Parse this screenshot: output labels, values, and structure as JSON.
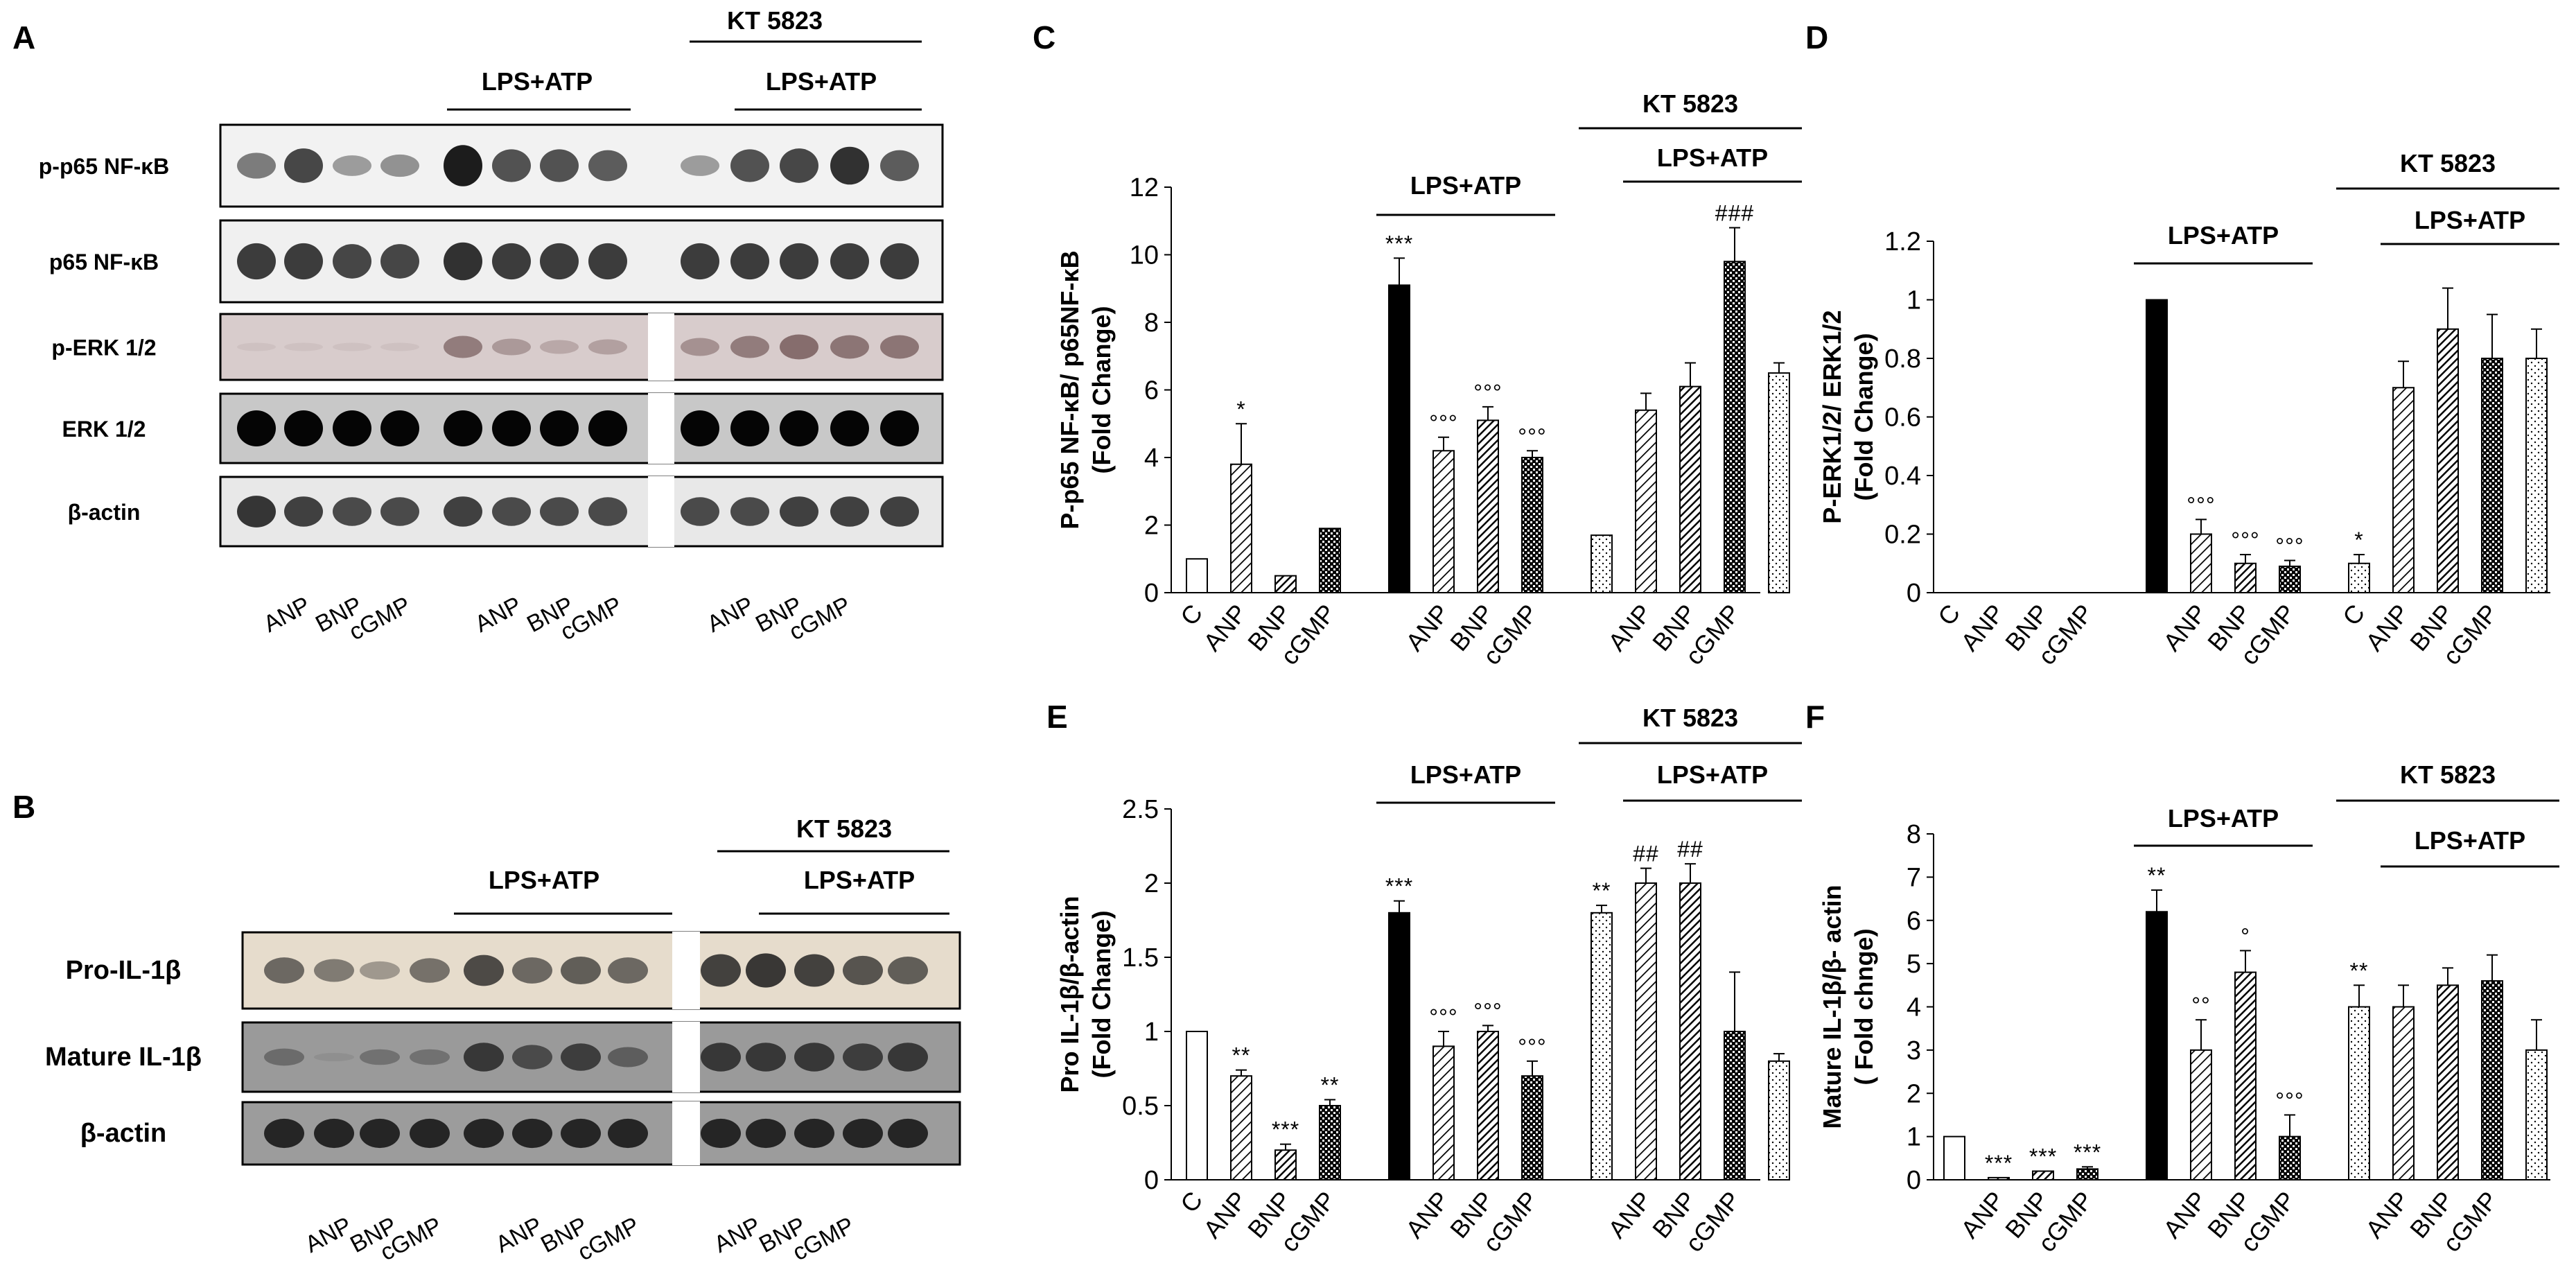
{
  "panel_letters": [
    "A",
    "B",
    "C",
    "D",
    "E",
    "F"
  ],
  "blot_A": {
    "treatment_labels": {
      "kt": "KT 5823",
      "lps_mid": "LPS+ATP",
      "lps_right": "LPS+ATP"
    },
    "rows": [
      {
        "label": "p-p65 NF-κB",
        "bg": "#f2f2f2",
        "color": "#1c1c1c",
        "intensity": [
          0.55,
          0.8,
          0.4,
          0.45,
          1.0,
          0.75,
          0.75,
          0.7,
          0.4,
          0.75,
          0.8,
          0.9,
          0.7
        ]
      },
      {
        "label": "p65 NF-κB",
        "bg": "#f0f0f0",
        "color": "#1c1c1c",
        "intensity": [
          0.85,
          0.85,
          0.8,
          0.8,
          0.9,
          0.85,
          0.85,
          0.85,
          0.85,
          0.85,
          0.85,
          0.85,
          0.85
        ]
      },
      {
        "label": "p-ERK 1/2",
        "bg": "#d8cccc",
        "color": "#5a3a3a",
        "intensity": [
          0.05,
          0.05,
          0.05,
          0.05,
          0.55,
          0.35,
          0.25,
          0.3,
          0.4,
          0.55,
          0.65,
          0.6,
          0.6
        ]
      },
      {
        "label": "ERK 1/2",
        "bg": "#c8c8c8",
        "color": "#050505",
        "intensity": [
          1,
          1,
          1,
          1,
          1,
          1,
          1,
          1,
          1,
          1,
          1,
          1,
          1
        ]
      },
      {
        "label": "β-actin",
        "bg": "#e8e8e8",
        "color": "#151515",
        "intensity": [
          0.85,
          0.8,
          0.75,
          0.75,
          0.8,
          0.75,
          0.75,
          0.75,
          0.75,
          0.75,
          0.8,
          0.8,
          0.8
        ]
      }
    ],
    "lane_labels": [
      "ANP",
      "BNP",
      "cGMP",
      "ANP",
      "BNP",
      "cGMP",
      "ANP",
      "BNP",
      "cGMP"
    ]
  },
  "blot_B": {
    "treatment_labels": {
      "kt": "KT 5823",
      "lps_mid": "LPS+ATP",
      "lps_right": "LPS+ATP"
    },
    "rows": [
      {
        "label": "Pro-IL-1β",
        "bg": "#e6dccc",
        "color": "#1a1a1a",
        "intensity": [
          0.6,
          0.5,
          0.35,
          0.55,
          0.75,
          0.6,
          0.65,
          0.6,
          0.8,
          0.85,
          0.8,
          0.7,
          0.65
        ]
      },
      {
        "label": "Mature IL-1β",
        "bg": "#9a9a9a",
        "color": "#151515",
        "intensity": [
          0.35,
          0.05,
          0.3,
          0.3,
          0.75,
          0.6,
          0.7,
          0.45,
          0.75,
          0.75,
          0.75,
          0.7,
          0.75
        ]
      },
      {
        "label": "β-actin",
        "bg": "#9c9c9c",
        "color": "#101010",
        "intensity": [
          0.85,
          0.85,
          0.85,
          0.85,
          0.85,
          0.85,
          0.85,
          0.85,
          0.85,
          0.85,
          0.85,
          0.85,
          0.85
        ]
      }
    ],
    "lane_labels": [
      "ANP",
      "BNP",
      "cGMP",
      "ANP",
      "BNP",
      "cGMP",
      "ANP",
      "BNP",
      "cGMP"
    ]
  },
  "chart_data": [
    {
      "panel": "C",
      "type": "bar",
      "ylabel": "P-p65 NF-κB/ p65NF-κB (Fold Change)",
      "ylim": [
        0,
        12
      ],
      "yticks": [
        "0",
        "2",
        "4",
        "6",
        "8",
        "10",
        "12"
      ],
      "categories": [
        "C",
        "ANP",
        "BNP",
        "cGMP",
        "C",
        "ANP",
        "BNP",
        "cGMP",
        "C",
        "ANP",
        "BNP",
        "cGMP",
        "C"
      ],
      "category_labels_shown": [
        "C",
        "ANP",
        "BNP",
        "cGMP",
        "",
        "ANP",
        "BNP",
        "cGMP",
        "",
        "ANP",
        "BNP",
        "cGMP",
        ""
      ],
      "values": [
        1.0,
        3.8,
        0.5,
        1.9,
        9.1,
        4.2,
        5.1,
        4.0,
        1.7,
        5.4,
        6.1,
        9.8,
        6.5
      ],
      "errors": [
        0,
        1.2,
        0,
        0,
        0.8,
        0.4,
        0.4,
        0.2,
        0,
        0.5,
        0.7,
        1.0,
        0.3
      ],
      "annotations": [
        "",
        "*",
        "",
        "",
        "***",
        "°°°",
        "°°°",
        "°°°",
        "",
        "",
        "",
        "###",
        ""
      ],
      "brackets": [
        {
          "label": "LPS+ATP",
          "from": 4,
          "to": 7
        },
        {
          "label": "KT 5823",
          "from": 8,
          "to": 12
        },
        {
          "label": "LPS+ATP",
          "from": 9,
          "to": 12
        }
      ]
    },
    {
      "panel": "D",
      "type": "bar",
      "ylabel": "P-ERK1/2/ ERK1/2 (Fold Change)",
      "ylim": [
        0,
        1.2
      ],
      "yticks": [
        "0",
        "0.2",
        "0.4",
        "0.6",
        "0.8",
        "1",
        "1.2"
      ],
      "categories": [
        "C",
        "ANP",
        "BNP",
        "cGMP",
        "C",
        "ANP",
        "BNP",
        "cGMP",
        "C",
        "ANP",
        "BNP",
        "cGMP",
        "C"
      ],
      "category_labels_shown": [
        "C",
        "ANP",
        "BNP",
        "cGMP",
        "",
        "ANP",
        "BNP",
        "cGMP",
        "C",
        "ANP",
        "BNP",
        "cGMP",
        ""
      ],
      "values": [
        0,
        0,
        0,
        0,
        1.0,
        0.2,
        0.1,
        0.09,
        0.1,
        0.7,
        0.9,
        0.8,
        0.8
      ],
      "errors": [
        0,
        0,
        0,
        0,
        0,
        0.05,
        0.03,
        0.02,
        0.03,
        0.09,
        0.14,
        0.15,
        0.1
      ],
      "annotations": [
        "",
        "",
        "",
        "",
        "",
        "°°°",
        "°°°",
        "°°°",
        "*",
        "",
        "",
        "",
        ""
      ],
      "brackets": [
        {
          "label": "LPS+ATP",
          "from": 4,
          "to": 7
        },
        {
          "label": "KT 5823",
          "from": 8,
          "to": 12
        },
        {
          "label": "LPS+ATP",
          "from": 9,
          "to": 12
        }
      ]
    },
    {
      "panel": "E",
      "type": "bar",
      "ylabel": "Pro IL-1β/β-actin (Fold Change)",
      "ylim": [
        0,
        2.5
      ],
      "yticks": [
        "0",
        "0.5",
        "1",
        "1.5",
        "2",
        "2.5"
      ],
      "categories": [
        "C",
        "ANP",
        "BNP",
        "cGMP",
        "C",
        "ANP",
        "BNP",
        "cGMP",
        "C",
        "ANP",
        "BNP",
        "cGMP",
        "C"
      ],
      "category_labels_shown": [
        "C",
        "ANP",
        "BNP",
        "cGMP",
        "",
        "ANP",
        "BNP",
        "cGMP",
        "",
        "ANP",
        "BNP",
        "cGMP",
        ""
      ],
      "values": [
        1.0,
        0.7,
        0.2,
        0.5,
        1.8,
        0.9,
        1.0,
        0.7,
        1.8,
        2.0,
        2.0,
        1.0,
        0.8
      ],
      "errors": [
        0,
        0.04,
        0.04,
        0.04,
        0.08,
        0.1,
        0.04,
        0.1,
        0.05,
        0.1,
        0.13,
        0.4,
        0.05
      ],
      "annotations": [
        "",
        "**",
        "***",
        "**",
        "***",
        "°°°",
        "°°°",
        "°°°",
        "**",
        "##",
        "##",
        "",
        ""
      ],
      "brackets": [
        {
          "label": "LPS+ATP",
          "from": 4,
          "to": 7
        },
        {
          "label": "KT 5823",
          "from": 8,
          "to": 12
        },
        {
          "label": "LPS+ATP",
          "from": 9,
          "to": 12
        }
      ]
    },
    {
      "panel": "F",
      "type": "bar",
      "ylabel": "Mature IL-1β/β- actin ( Fold chnge)",
      "ylim": [
        0,
        8
      ],
      "yticks": [
        "0",
        "1",
        "2",
        "3",
        "4",
        "5",
        "6",
        "7",
        "8"
      ],
      "categories": [
        "C",
        "ANP",
        "BNP",
        "cGMP",
        "C",
        "ANP",
        "BNP",
        "cGMP",
        "C",
        "ANP",
        "BNP",
        "cGMP",
        "C"
      ],
      "category_labels_shown": [
        "",
        "ANP",
        "BNP",
        "cGMP",
        "",
        "ANP",
        "BNP",
        "cGMP",
        "",
        "ANP",
        "BNP",
        "cGMP",
        ""
      ],
      "values": [
        1.0,
        0.05,
        0.2,
        0.25,
        6.2,
        3.0,
        4.8,
        1.0,
        4.0,
        4.0,
        4.5,
        4.6,
        3.0
      ],
      "errors": [
        0,
        0,
        0,
        0.05,
        0.5,
        0.7,
        0.5,
        0.5,
        0.5,
        0.5,
        0.4,
        0.6,
        0.7
      ],
      "annotations": [
        "",
        "***",
        "***",
        "***",
        "**",
        "°°",
        "°",
        "°°°",
        "**",
        "",
        "",
        "",
        ""
      ],
      "brackets": [
        {
          "label": "LPS+ATP",
          "from": 4,
          "to": 7
        },
        {
          "label": "KT 5823",
          "from": 8,
          "to": 12
        },
        {
          "label": "LPS+ATP",
          "from": 9,
          "to": 12
        }
      ]
    }
  ]
}
